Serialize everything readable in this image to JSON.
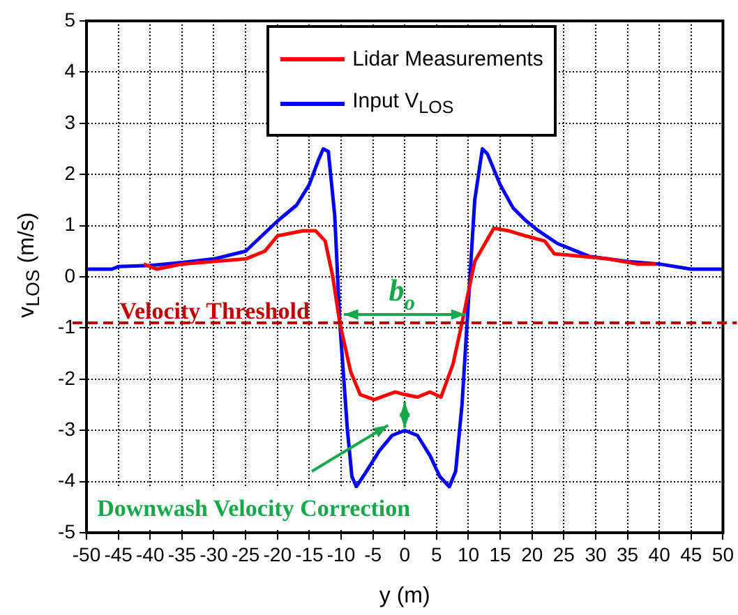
{
  "chart_data": {
    "type": "line",
    "xlabel": "y (m)",
    "ylabel": "v$_{LOS}$ (m/s)",
    "xlim": [
      -50,
      50
    ],
    "xticks": [
      -50,
      -45,
      -40,
      -35,
      -30,
      -25,
      -20,
      -15,
      -10,
      -5,
      0,
      5,
      10,
      15,
      20,
      25,
      30,
      35,
      40,
      45,
      50
    ],
    "ylim": [
      -5,
      5
    ],
    "yticks": [
      -5,
      -4,
      -3,
      -2,
      -1,
      0,
      1,
      2,
      3,
      4,
      5
    ],
    "grid": true,
    "legend": "top",
    "marker": "none",
    "line_style": "solid",
    "series": [
      {
        "name": "Lidar Measurements",
        "color": "#ff0000",
        "x": [
          -41,
          -39,
          -35,
          -30,
          -25,
          -22,
          -20,
          -16,
          -14,
          -12.5,
          -11.3,
          -10.2,
          -8.5,
          -7,
          -4.8,
          -1.5,
          0,
          2,
          4,
          5.7,
          7.6,
          9,
          11,
          14,
          16.3,
          19,
          22,
          23.5,
          28,
          32,
          36.5,
          39.5
        ],
        "values": [
          0.25,
          0.15,
          0.25,
          0.3,
          0.35,
          0.5,
          0.8,
          0.9,
          0.9,
          0.7,
          0,
          -0.9,
          -1.85,
          -2.3,
          -2.4,
          -2.25,
          -2.3,
          -2.35,
          -2.25,
          -2.35,
          -1.7,
          -0.9,
          0.3,
          0.95,
          0.9,
          0.8,
          0.7,
          0.45,
          0.4,
          0.35,
          0.25,
          0.25
        ]
      },
      {
        "name": "Input  V$_{LOS}$",
        "color": "#0000ff",
        "x": [
          -50,
          -46,
          -45,
          -40,
          -35,
          -30,
          -25,
          -20,
          -17,
          -15,
          -13.5,
          -12.8,
          -12,
          -11,
          -10.2,
          -9,
          -8.3,
          -7.6,
          -6,
          -4,
          -2,
          0,
          2,
          4,
          5.5,
          7,
          8,
          9,
          9.8,
          11,
          12.2,
          13,
          15,
          17,
          19,
          21,
          24,
          29,
          35,
          40,
          45,
          50
        ],
        "values": [
          0.15,
          0.15,
          0.2,
          0.22,
          0.28,
          0.35,
          0.5,
          1.09,
          1.4,
          1.8,
          2.3,
          2.5,
          2.45,
          1.2,
          -0.9,
          -3,
          -3.9,
          -4.1,
          -3.8,
          -3.4,
          -3.1,
          -3,
          -3.1,
          -3.5,
          -3.9,
          -4.1,
          -3.8,
          -2.5,
          -0.9,
          1.5,
          2.5,
          2.4,
          1.8,
          1.35,
          1.1,
          0.9,
          0.65,
          0.4,
          0.3,
          0.25,
          0.15,
          0.15
        ]
      }
    ],
    "ref_lines": [
      {
        "axis": "y",
        "value": -0.9,
        "label": "Velocity Threshold",
        "color": "#c00000",
        "line_style": "dashed"
      }
    ],
    "annotations": [
      {
        "text": "b$_{o}$",
        "x": 0,
        "y": -0.9
      },
      "Downwash Velocity Correction"
    ]
  }
}
